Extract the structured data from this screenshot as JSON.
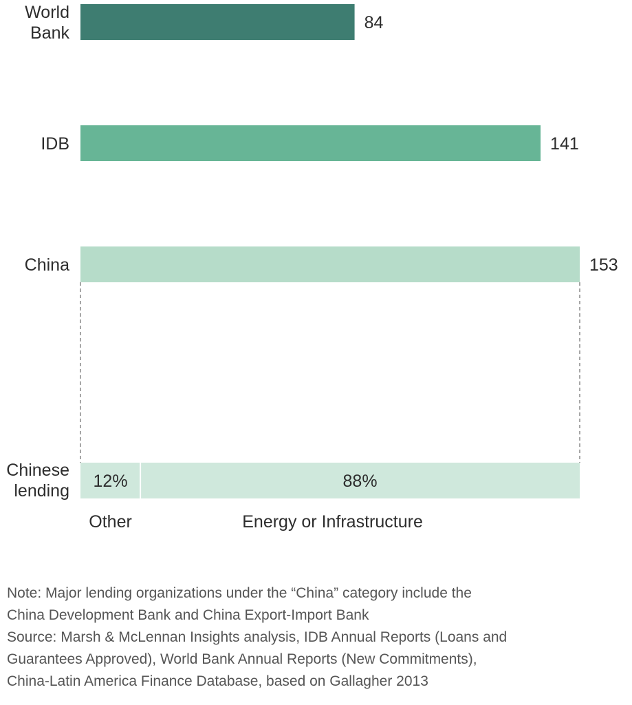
{
  "chart_data": [
    {
      "type": "bar",
      "orientation": "horizontal",
      "categories": [
        "World Bank",
        "IDB",
        "China"
      ],
      "category_lines": [
        [
          "World",
          "Bank"
        ],
        [
          "IDB"
        ],
        [
          "China"
        ]
      ],
      "values": [
        84,
        141,
        153
      ],
      "value_labels": [
        "84",
        "141",
        "153"
      ],
      "colors": [
        "#3e7d71",
        "#67b596",
        "#b6dcc9"
      ],
      "xlim": [
        0,
        153
      ],
      "grid": false
    },
    {
      "type": "bar",
      "orientation": "horizontal",
      "stacked": true,
      "category_lines": [
        "Chinese",
        "lending"
      ],
      "segments": [
        {
          "name": "Other",
          "value": 12,
          "label": "12%"
        },
        {
          "name": "Energy or Infrastructure",
          "value": 88,
          "label": "88%"
        }
      ],
      "color": "#cfe8dc",
      "unit": "%"
    }
  ],
  "notes": {
    "note": [
      "Note: Major lending organizations under the “China” category include the",
      "China Development Bank and China Export-Import Bank"
    ],
    "source": [
      "Source: Marsh & McLennan Insights analysis, IDB Annual Reports (Loans and",
      "Guarantees Approved), World Bank Annual Reports (New Commitments),",
      "China-Latin America Finance Database, based on Gallagher 2013"
    ]
  }
}
